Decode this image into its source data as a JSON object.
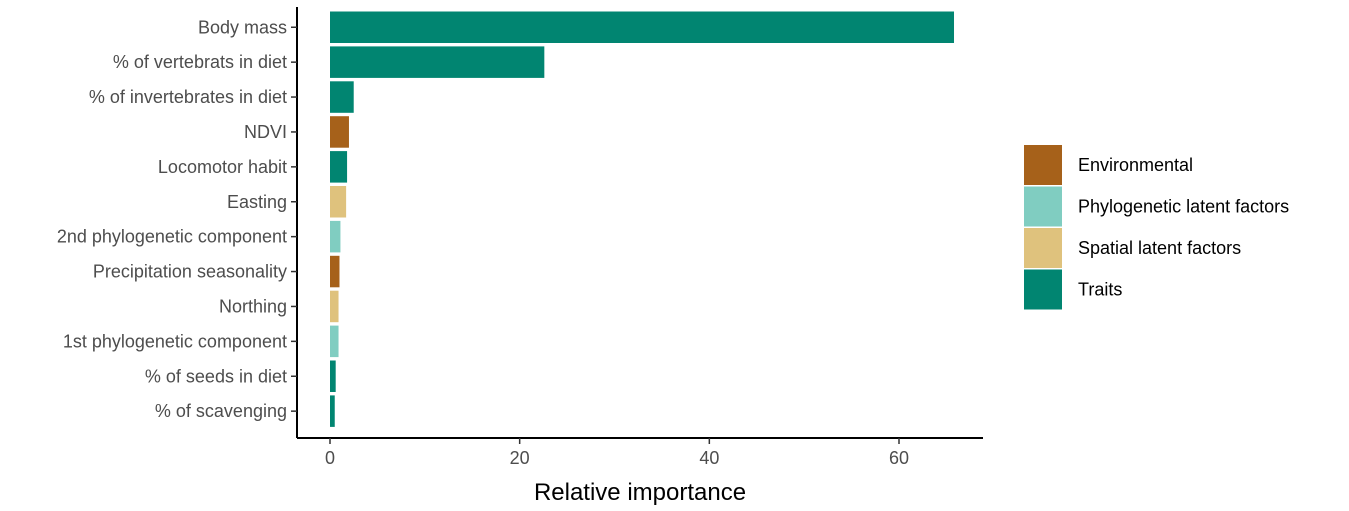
{
  "chart_data": {
    "type": "bar",
    "orientation": "horizontal",
    "xlabel": "Relative importance",
    "ylabel": "",
    "xlim": [
      -3.5,
      69.5
    ],
    "xticks": [
      0,
      20,
      40,
      60
    ],
    "grid": false,
    "legend_position": "right",
    "bars": [
      {
        "label": "Body mass",
        "value": 65.8,
        "group": "Traits"
      },
      {
        "label": "% of vertebrats in diet",
        "value": 22.6,
        "group": "Traits"
      },
      {
        "label": "% of invertebrates in diet",
        "value": 2.5,
        "group": "Traits"
      },
      {
        "label": "NDVI",
        "value": 2.0,
        "group": "Environmental"
      },
      {
        "label": "Locomotor habit",
        "value": 1.8,
        "group": "Traits"
      },
      {
        "label": "Easting",
        "value": 1.7,
        "group": "Spatial latent factors"
      },
      {
        "label": "2nd phylogenetic component",
        "value": 1.1,
        "group": "Phylogenetic latent factors"
      },
      {
        "label": "Precipitation seasonality",
        "value": 1.0,
        "group": "Environmental"
      },
      {
        "label": "Northing",
        "value": 0.9,
        "group": "Spatial latent factors"
      },
      {
        "label": "1st phylogenetic component",
        "value": 0.9,
        "group": "Phylogenetic latent factors"
      },
      {
        "label": "% of seeds in diet",
        "value": 0.6,
        "group": "Traits"
      },
      {
        "label": "% of scavenging",
        "value": 0.5,
        "group": "Traits"
      }
    ],
    "legend": [
      {
        "name": "Environmental",
        "color": "#a6611a"
      },
      {
        "name": "Phylogenetic latent factors",
        "color": "#80cdc1"
      },
      {
        "name": "Spatial latent factors",
        "color": "#dfc27d"
      },
      {
        "name": "Traits",
        "color": "#018571"
      }
    ]
  }
}
